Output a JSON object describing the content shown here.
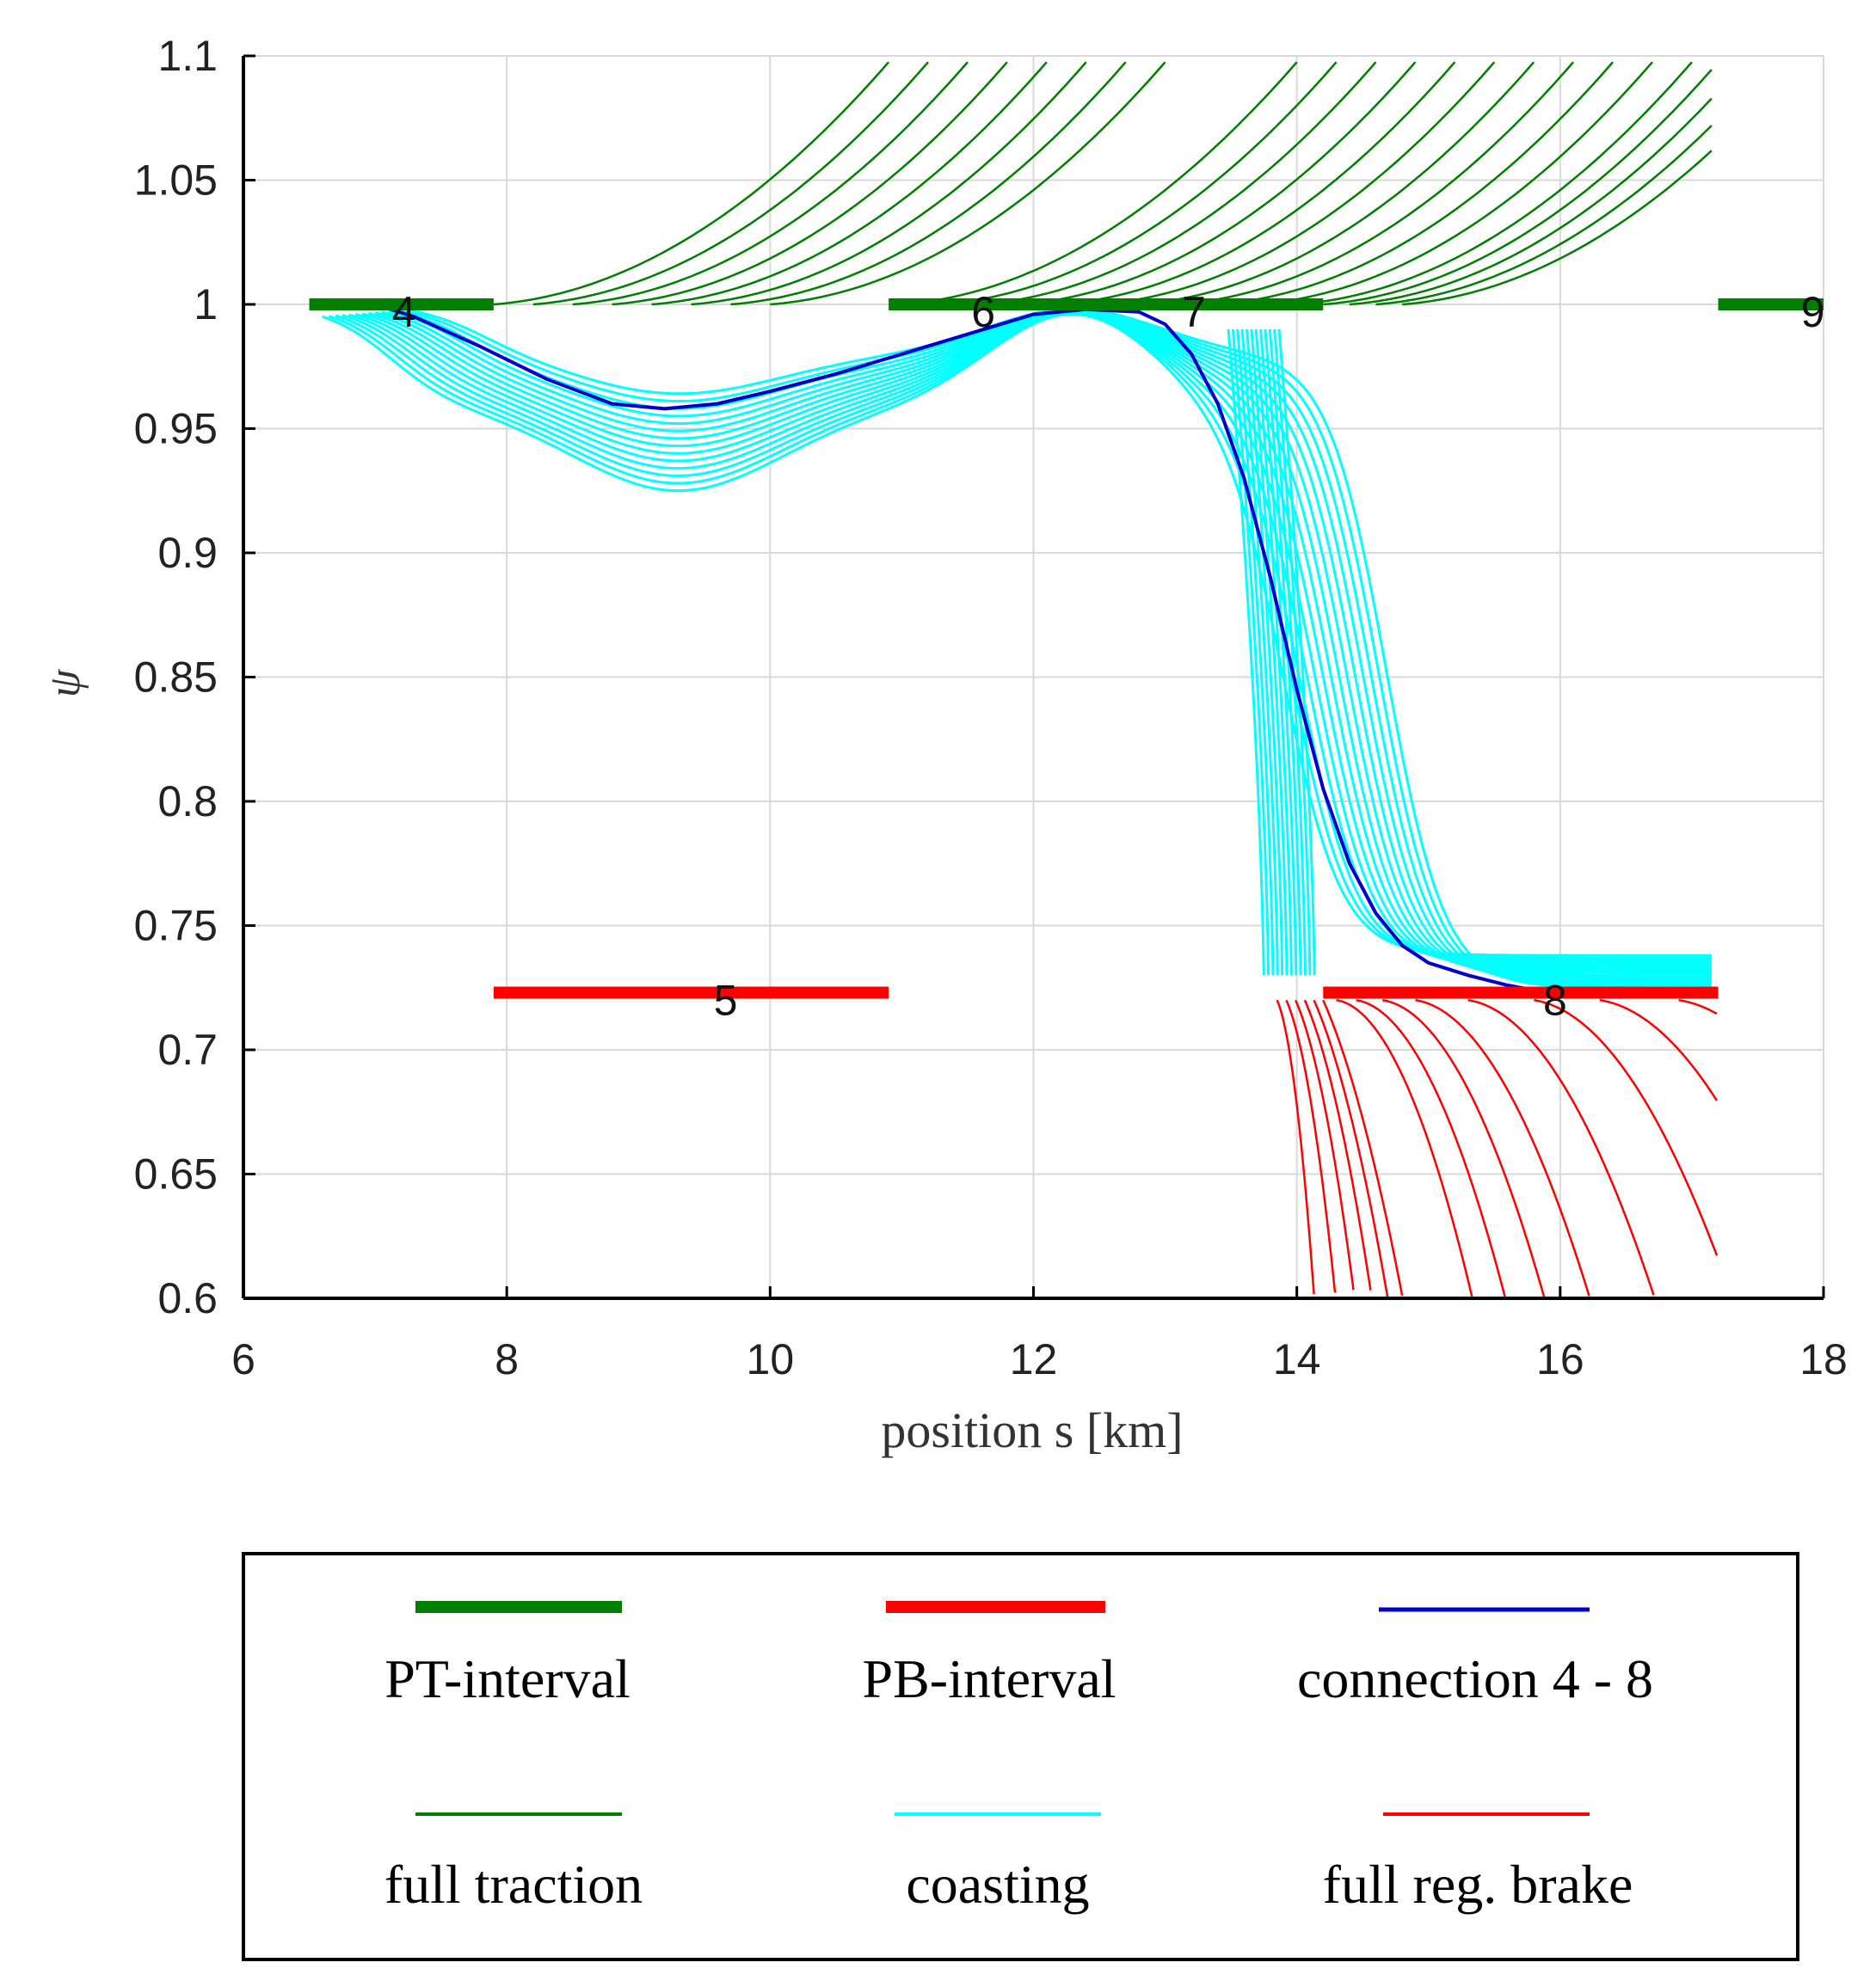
{
  "chart_data": {
    "type": "line",
    "title": "",
    "xlabel": "position s [km]",
    "ylabel": "ψ",
    "xlim": [
      6,
      18
    ],
    "ylim": [
      0.6,
      1.1
    ],
    "xticks": [
      "6",
      "8",
      "10",
      "12",
      "14",
      "16",
      "18"
    ],
    "yticks": [
      "0.6",
      "0.65",
      "0.7",
      "0.75",
      "0.8",
      "0.85",
      "0.9",
      "0.95",
      "1",
      "1.05",
      "1.1"
    ],
    "grid": true,
    "colors": {
      "pt": "#007f00",
      "pb": "#ff0000",
      "connection": "#0000cc",
      "traction": "#007f00",
      "coasting": "#00ffff",
      "brake": "#ff0000",
      "axis": "#000000",
      "grid": "#d9d9d9"
    },
    "pt_intervals": [
      {
        "label": "4",
        "x": [
          6.5,
          7.9
        ],
        "y": 1.0
      },
      {
        "label": "6",
        "x": [
          10.9,
          12.5
        ],
        "y": 1.0
      },
      {
        "label": "7",
        "x": [
          12.5,
          14.2
        ],
        "y": 1.0
      },
      {
        "label": "9",
        "x": [
          17.2,
          18.0
        ],
        "y": 1.0
      }
    ],
    "pb_intervals": [
      {
        "label": "5",
        "x": [
          7.9,
          10.9
        ],
        "y": 0.723
      },
      {
        "label": "8",
        "x": [
          14.2,
          17.2
        ],
        "y": 0.723
      }
    ],
    "connection": {
      "name": "connection 4 - 8",
      "x": [
        7.0,
        7.3,
        7.8,
        8.3,
        8.8,
        9.2,
        9.6,
        10.0,
        10.5,
        11.0,
        11.5,
        12.0,
        12.4,
        12.8,
        13.0,
        13.2,
        13.4,
        13.6,
        13.8,
        14.0,
        14.2,
        14.4,
        14.6,
        14.8,
        15.0,
        15.3,
        15.6,
        15.8
      ],
      "y": [
        1.0,
        0.995,
        0.983,
        0.97,
        0.96,
        0.958,
        0.96,
        0.965,
        0.972,
        0.98,
        0.988,
        0.996,
        0.998,
        0.997,
        0.992,
        0.98,
        0.96,
        0.93,
        0.89,
        0.845,
        0.805,
        0.775,
        0.755,
        0.742,
        0.735,
        0.73,
        0.726,
        0.724
      ]
    },
    "series": [
      {
        "name": "PT-interval",
        "style": "thick",
        "color": "#007f00"
      },
      {
        "name": "PB-interval",
        "style": "thick",
        "color": "#ff0000"
      },
      {
        "name": "connection 4 - 8",
        "style": "line",
        "color": "#0000cc"
      },
      {
        "name": "full traction",
        "style": "thin",
        "color": "#007f00"
      },
      {
        "name": "coasting",
        "style": "thin",
        "color": "#00ffff"
      },
      {
        "name": "full reg. brake",
        "style": "thin",
        "color": "#ff0000"
      }
    ],
    "legend": {
      "position": "bottom",
      "entries": [
        "PT-interval",
        "PB-interval",
        "connection 4 - 8",
        "full traction",
        "coasting",
        "full reg. brake"
      ]
    }
  }
}
